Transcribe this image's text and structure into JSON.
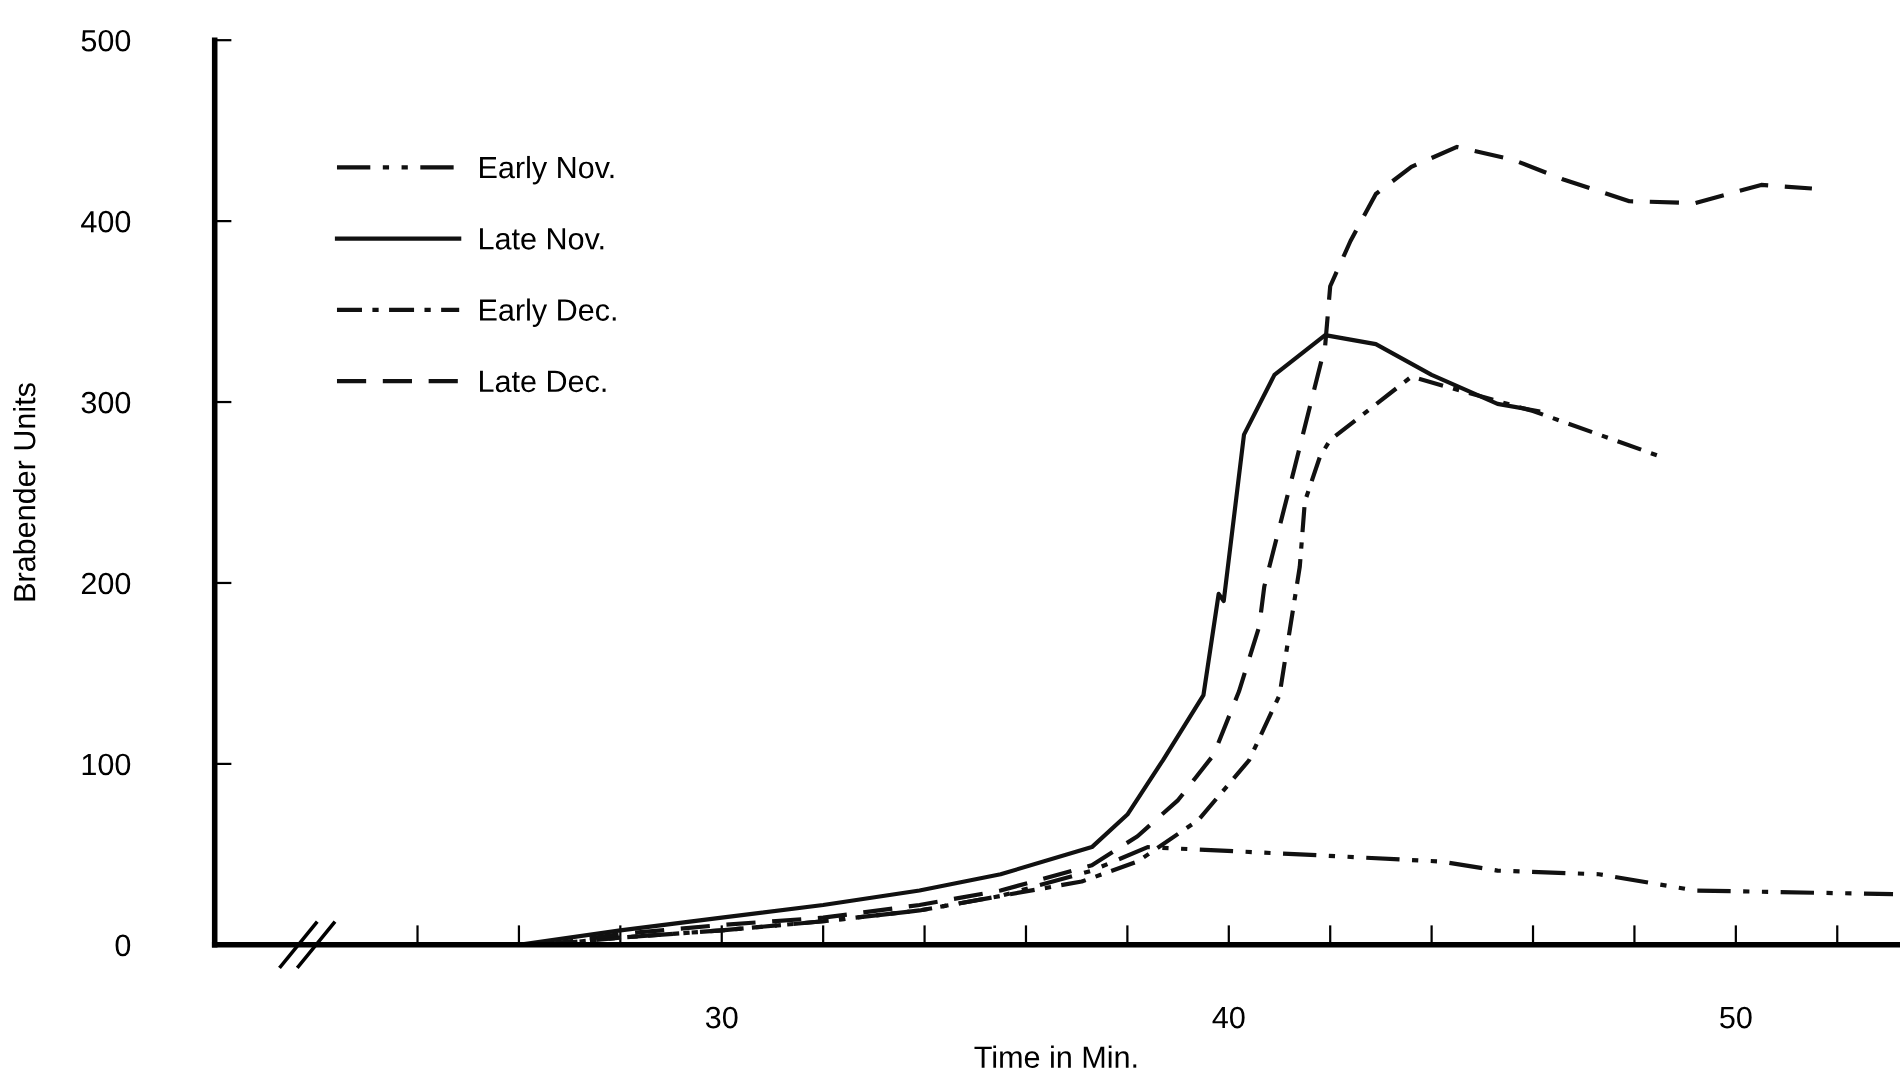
{
  "chart_data": {
    "type": "line",
    "xlabel": "Time in Min.",
    "ylabel": "Brabender Units",
    "xlim": [
      20,
      53.2
    ],
    "ylim": [
      0,
      500
    ],
    "xticks": [
      {
        "value": 24,
        "label": null
      },
      {
        "value": 26,
        "label": null
      },
      {
        "value": 28,
        "label": null
      },
      30,
      {
        "value": 32,
        "label": null
      },
      {
        "value": 34,
        "label": null
      },
      {
        "value": 36,
        "label": null
      },
      {
        "value": 38,
        "label": null
      },
      40,
      {
        "value": 42,
        "label": null
      },
      {
        "value": 44,
        "label": null
      },
      {
        "value": 46,
        "label": null
      },
      {
        "value": 48,
        "label": null
      },
      50,
      {
        "value": 52,
        "label": null
      }
    ],
    "yticks": [
      0,
      100,
      200,
      300,
      400,
      500
    ],
    "grid": false,
    "legend": "top left",
    "marker": "none",
    "series": [
      {
        "name": "Early Nov.",
        "color": "#111111",
        "line_style": "dashdotdot",
        "x": [
          26.5,
          28.0,
          30,
          32.0,
          33.9,
          35.5,
          37.3,
          38.4,
          41.4,
          44.2,
          45.3,
          47.3,
          49.2,
          53.1
        ],
        "values": [
          0,
          4,
          8,
          13,
          19,
          27,
          41,
          54,
          50,
          46,
          41,
          39,
          30,
          28
        ]
      },
      {
        "name": "Late Nov.",
        "color": "#111111",
        "line_style": "solid",
        "x": [
          26.0,
          28.0,
          30,
          32.0,
          33.9,
          35.5,
          37.3,
          38.0,
          38.7,
          39.5,
          39.8,
          39.9,
          40.3,
          40.9,
          41.9,
          42.9,
          44.0,
          45.3,
          46.1
        ],
        "values": [
          0,
          8,
          15,
          22,
          30,
          39,
          54,
          72,
          102,
          138,
          194,
          190,
          282,
          315,
          337,
          332,
          315,
          299,
          295
        ]
      },
      {
        "name": "Early Dec.",
        "color": "#111111",
        "line_style": "dashdot",
        "x": [
          26.5,
          28.0,
          30,
          32.0,
          33.9,
          35.5,
          37.1,
          38.2,
          39.4,
          40.4,
          41.0,
          41.4,
          41.5,
          41.8,
          42.0,
          43.6,
          46.0,
          48.5
        ],
        "values": [
          0,
          4,
          8,
          13,
          19,
          27,
          35,
          46,
          69,
          102,
          138,
          209,
          245,
          270,
          279,
          314,
          295,
          270
        ]
      },
      {
        "name": "Late Dec.",
        "color": "#111111",
        "line_style": "dashed",
        "x": [
          26.5,
          28.0,
          30,
          32.0,
          33.9,
          35.5,
          37.3,
          38.2,
          39.0,
          39.7,
          40.2,
          40.6,
          40.7,
          41.3,
          41.9,
          42.0,
          42.4,
          42.9,
          43.6,
          44.5,
          45.6,
          46.6,
          47.9,
          49.2,
          50.5,
          51.5
        ],
        "values": [
          0,
          6,
          11,
          15,
          22,
          30,
          44,
          60,
          80,
          105,
          140,
          176,
          198,
          264,
          331,
          364,
          389,
          415,
          430,
          441,
          434,
          423,
          411,
          410,
          420,
          418
        ]
      }
    ]
  }
}
